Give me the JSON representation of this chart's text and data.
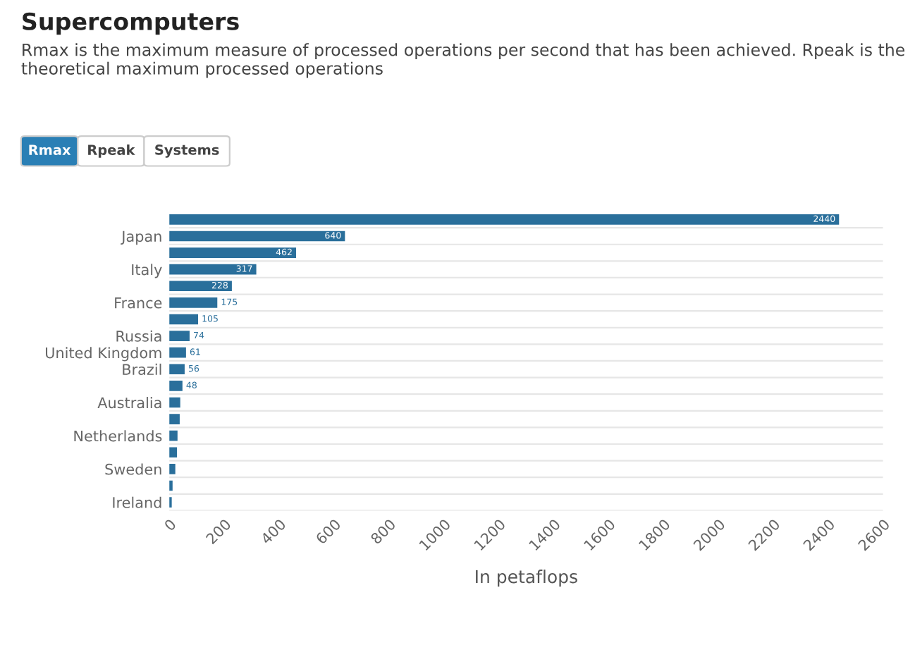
{
  "chart_data": {
    "type": "bar",
    "orientation": "horizontal",
    "title": "Supercomputers",
    "subtitle": "Rmax is the maximum measure of processed operations per second that has been achieved. Rpeak is the theoretical maximum processed operations",
    "annotations": [
      "Rmax",
      "Rpeak",
      "Systems"
    ],
    "categories": [
      null,
      "Japan",
      null,
      "Italy",
      null,
      "France",
      null,
      "Russia",
      "United Kingdom",
      "Brazil",
      null,
      "Australia",
      null,
      "Netherlands",
      null,
      "Sweden",
      null,
      "Ireland"
    ],
    "values": [
      2440,
      640,
      462,
      317,
      228,
      175,
      105,
      74,
      61,
      56,
      48,
      40,
      38,
      30,
      28,
      22,
      12,
      9
    ],
    "value_labels": [
      "2440",
      "640",
      "462",
      "317",
      "228",
      "175",
      "105",
      "74",
      "61",
      "56",
      "48",
      null,
      null,
      null,
      null,
      null,
      null,
      null
    ],
    "color": "#2a6f9b",
    "xlabel": "In petaflops",
    "xlim": [
      0,
      2600
    ],
    "xticks": [
      0,
      200,
      400,
      600,
      800,
      1000,
      1200,
      1400,
      1600,
      1800,
      2000,
      2200,
      2400,
      2600
    ],
    "grid": "y"
  }
}
